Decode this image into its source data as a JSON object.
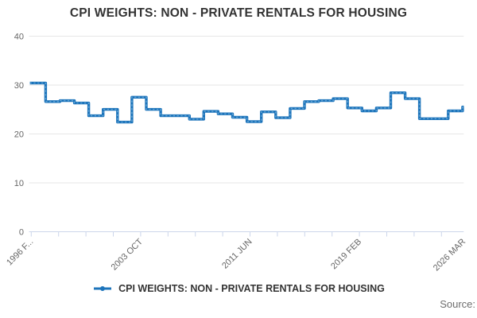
{
  "title": "CPI WEIGHTS: NON - PRIVATE RENTALS FOR HOUSING",
  "legend": {
    "label": "CPI WEIGHTS: NON - PRIVATE RENTALS FOR HOUSING"
  },
  "source_label": "Source:",
  "colors": {
    "line": "#1d74bb",
    "marker_texture": "#6fadd9",
    "grid": "#e6e6e6",
    "axis": "#ccd6eb",
    "axis_label": "#666666",
    "title_text": "#333333",
    "source_text": "#6e6e6e"
  },
  "chart_data": {
    "type": "line",
    "subtype": "step-line with monthly markers, annual weight updates each February",
    "title": "CPI WEIGHTS: NON - PRIVATE RENTALS FOR HOUSING",
    "xlabel": "",
    "ylabel": "",
    "ylim": [
      0,
      40
    ],
    "grid": "horizontal only",
    "legend_position": "bottom-center",
    "x_range": [
      "1996 FEB",
      "2026 MAR"
    ],
    "ytick_labels": [
      "40",
      "30",
      "20",
      "10",
      "0"
    ],
    "xtick_labels": [
      "1996 F...",
      "2003 OCT",
      "2011 JUN",
      "2019 FEB",
      "2026 MAR"
    ],
    "series": [
      {
        "name": "CPI WEIGHTS: NON - PRIVATE RENTALS FOR HOUSING",
        "years": [
          1996,
          1997,
          1998,
          1999,
          2000,
          2001,
          2002,
          2003,
          2004,
          2005,
          2006,
          2007,
          2008,
          2009,
          2010,
          2011,
          2012,
          2013,
          2014,
          2015,
          2016,
          2017,
          2018,
          2019,
          2020,
          2021,
          2022,
          2023,
          2024,
          2025,
          2026
        ],
        "values": [
          30.4,
          26.6,
          26.8,
          26.3,
          23.7,
          25.0,
          22.4,
          27.5,
          25.0,
          23.7,
          23.7,
          23.0,
          24.6,
          24.1,
          23.4,
          22.5,
          24.5,
          23.3,
          25.2,
          26.6,
          26.8,
          27.2,
          25.3,
          24.7,
          25.3,
          28.4,
          27.2,
          23.1,
          23.1,
          24.7,
          25.5
        ],
        "last_point": "2026 MAR"
      }
    ]
  }
}
